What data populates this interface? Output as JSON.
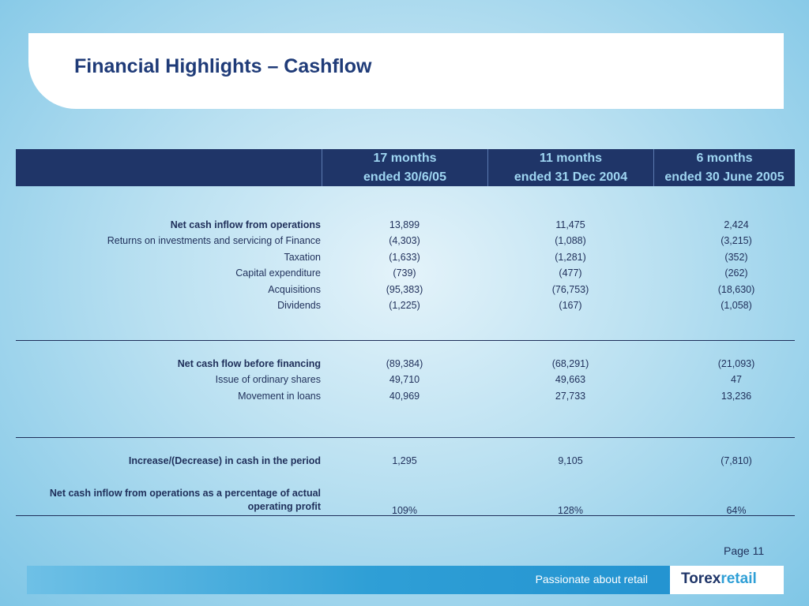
{
  "title": "Financial Highlights – Cashflow",
  "columns": [
    {
      "line1": "17 months",
      "line2": "ended 30/6/05"
    },
    {
      "line1": "11 months",
      "line2": "ended 31 Dec 2004"
    },
    {
      "line1": "6 months",
      "line2": "ended 30 June 2005"
    }
  ],
  "rows": [
    {
      "label": "Net cash inflow from operations",
      "bold": true,
      "values": [
        "13,899",
        "11,475",
        "2,424"
      ]
    },
    {
      "label": "Returns on investments and servicing of Finance",
      "bold": false,
      "values": [
        "(4,303)",
        "(1,088)",
        "(3,215)"
      ]
    },
    {
      "label": "Taxation",
      "bold": false,
      "values": [
        "(1,633)",
        "(1,281)",
        "(352)"
      ]
    },
    {
      "label": "Capital expenditure",
      "bold": false,
      "values": [
        "(739)",
        "(477)",
        "(262)"
      ]
    },
    {
      "label": "Acquisitions",
      "bold": false,
      "values": [
        "(95,383)",
        "(76,753)",
        "(18,630)"
      ]
    },
    {
      "label": "Dividends",
      "bold": false,
      "values": [
        "(1,225)",
        "(167)",
        "(1,058)"
      ]
    },
    {
      "label": "Net cash flow before financing",
      "bold": true,
      "values": [
        "(89,384)",
        "(68,291)",
        "(21,093)"
      ]
    },
    {
      "label": "Issue of ordinary shares",
      "bold": false,
      "values": [
        "49,710",
        "49,663",
        "47"
      ]
    },
    {
      "label": "Movement in loans",
      "bold": false,
      "values": [
        "40,969",
        "27,733",
        "13,236"
      ]
    },
    {
      "label": "Increase/(Decrease)  in cash in the period",
      "bold": true,
      "values": [
        "1,295",
        "9,105",
        "(7,810)"
      ]
    },
    {
      "label": "Net cash inflow from operations as a percentage of actual operating profit",
      "bold": true,
      "values": [
        "109%",
        "128%",
        "64%"
      ]
    }
  ],
  "page": "Page 11",
  "footer": {
    "tagline": "Passionate about retail",
    "logo_part1": "Torex",
    "logo_part2": "retail"
  }
}
